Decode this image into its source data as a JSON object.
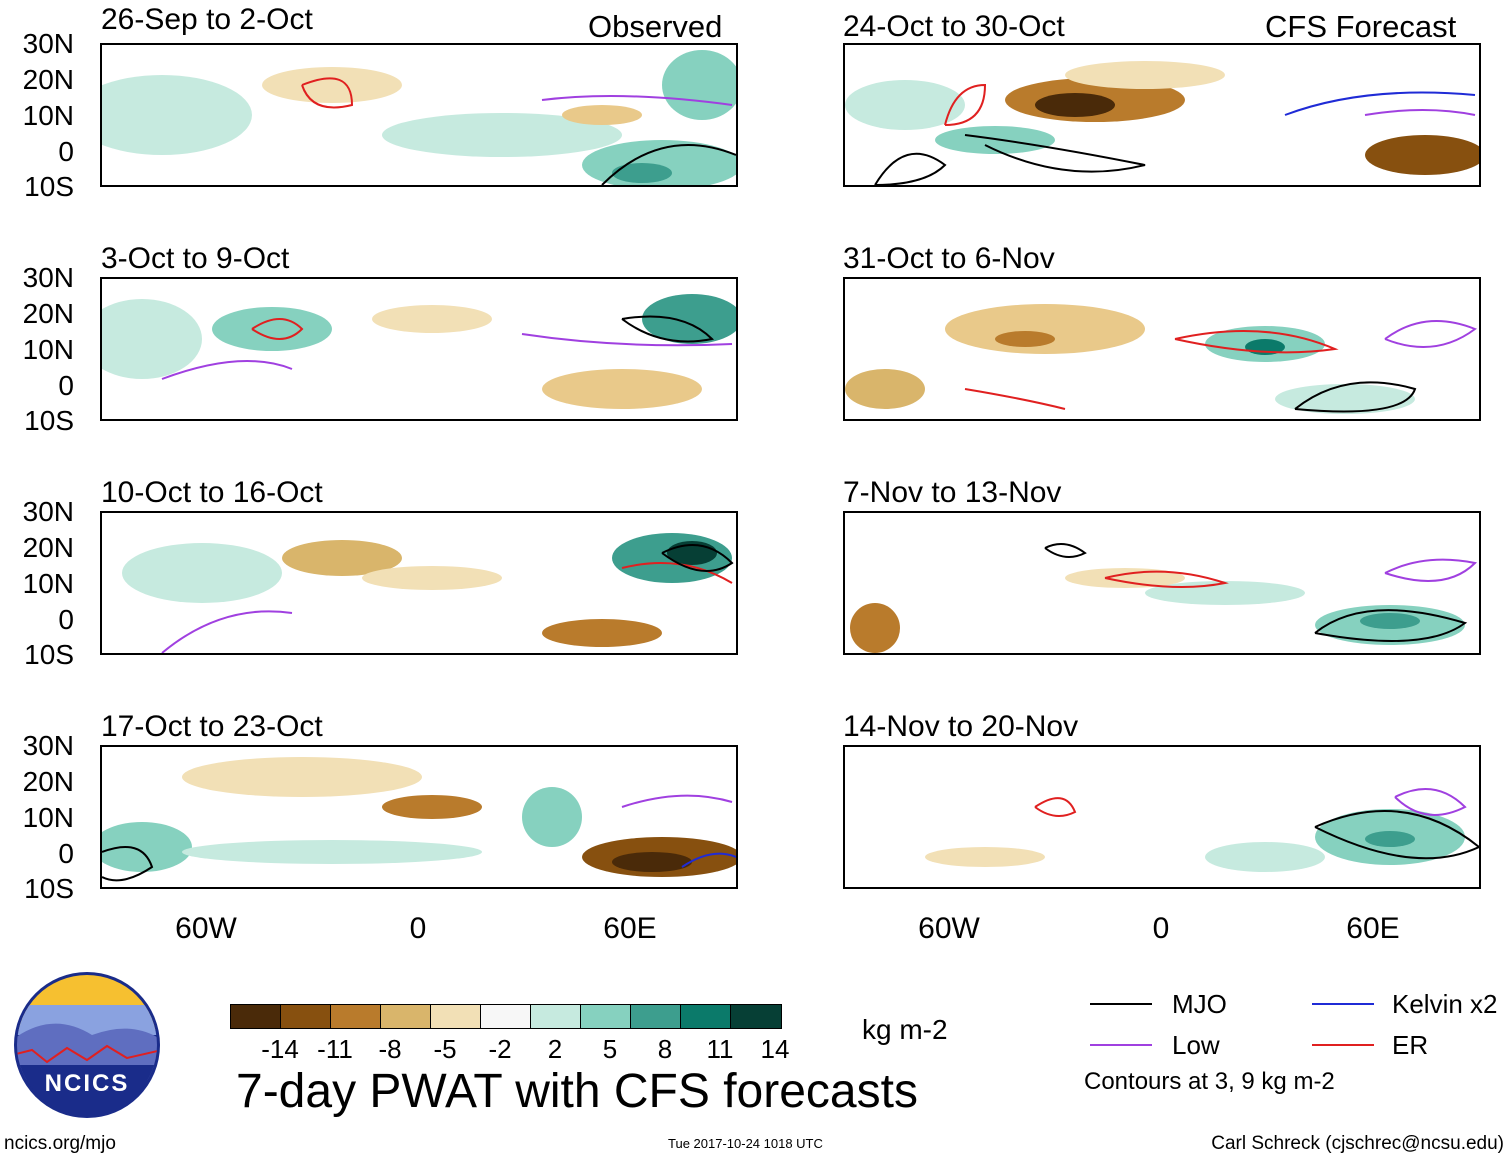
{
  "panels": [
    {
      "id": "p1",
      "title": "26-Sep to 2-Oct",
      "tag": "Observed"
    },
    {
      "id": "p2",
      "title": "24-Oct to 30-Oct",
      "tag": "CFS Forecast"
    },
    {
      "id": "p3",
      "title": "3-Oct to 9-Oct",
      "tag": ""
    },
    {
      "id": "p4",
      "title": "31-Oct to 6-Nov",
      "tag": ""
    },
    {
      "id": "p5",
      "title": "10-Oct to 16-Oct",
      "tag": ""
    },
    {
      "id": "p6",
      "title": "7-Nov to 13-Nov",
      "tag": ""
    },
    {
      "id": "p7",
      "title": "17-Oct to 23-Oct",
      "tag": ""
    },
    {
      "id": "p8",
      "title": "14-Nov to 20-Nov",
      "tag": ""
    }
  ],
  "lat_labels": [
    "30N",
    "20N",
    "10N",
    "0",
    "10S"
  ],
  "lon_labels": [
    "60W",
    "0",
    "60E"
  ],
  "colorbar": {
    "colors": [
      "#4a2a09",
      "#87500f",
      "#b97b2c",
      "#d9b56b",
      "#f2e0b6",
      "#f7f7f7",
      "#c6eadf",
      "#86d1bf",
      "#3d9e8e",
      "#0b7a6a",
      "#063f35"
    ],
    "ticks": [
      "-14",
      "-11",
      "-8",
      "-5",
      "-2",
      "2",
      "5",
      "8",
      "11",
      "14"
    ],
    "unit": "kg m-2"
  },
  "legend": {
    "items": [
      {
        "label": "MJO",
        "color": "#000000"
      },
      {
        "label": "Kelvin x2",
        "color": "#1f2bd6"
      },
      {
        "label": "Low",
        "color": "#a040e0"
      },
      {
        "label": "ER",
        "color": "#e02020"
      }
    ],
    "note": "Contours at 3, 9 kg m-2"
  },
  "main_title": "7-day PWAT with CFS forecasts",
  "logo_text": "NCICS",
  "footer": {
    "left": "ncics.org/mjo",
    "center": "Tue 2017-10-24 1018 UTC",
    "right": "Carl Schreck (cjschrec@ncsu.edu)"
  }
}
